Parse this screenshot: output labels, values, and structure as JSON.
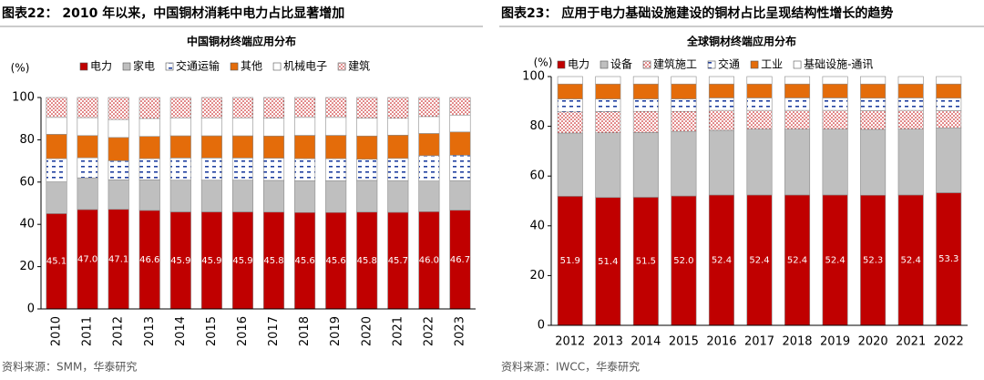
{
  "chart_data": [
    {
      "type": "bar",
      "stacked": true,
      "header": "图表22： 2010 年以来，中国铜材消耗中电力占比显著增加",
      "title": "中国铜材终端应用分布",
      "ylabel": "(%)",
      "source": "资料来源：SMM，华泰研究",
      "categories": [
        "2010",
        "2011",
        "2012",
        "2013",
        "2014",
        "2015",
        "2016",
        "2017",
        "2018",
        "2019",
        "2020",
        "2021",
        "2022",
        "2023"
      ],
      "ylim": [
        0,
        100
      ],
      "yticks": [
        0,
        20,
        40,
        60,
        80,
        100
      ],
      "xlabel_rotate": true,
      "series": [
        {
          "name": "电力",
          "color": "#c00000",
          "values": [
            45.1,
            47.0,
            47.1,
            46.6,
            45.9,
            45.9,
            45.9,
            45.8,
            45.6,
            45.6,
            45.8,
            45.7,
            46.0,
            46.7
          ],
          "value_labels": [
            "45.1",
            "47.0",
            "47.1",
            "46.6",
            "45.9",
            "45.9",
            "45.9",
            "45.8",
            "45.6",
            "45.6",
            "45.8",
            "45.7",
            "46.0",
            "46.7"
          ]
        },
        {
          "name": "家电",
          "color": "#bfbfbf",
          "values": [
            15.0,
            15.0,
            14.0,
            14.5,
            15.0,
            15.0,
            15.0,
            15.0,
            15.0,
            15.0,
            15.0,
            15.0,
            14.5,
            14.0
          ]
        },
        {
          "name": "交通运输",
          "color": "#1f3fa0",
          "pattern": "dashes",
          "values": [
            11.0,
            9.5,
            9.0,
            10.0,
            10.5,
            10.5,
            10.5,
            10.5,
            10.5,
            10.5,
            10.0,
            10.5,
            12.0,
            12.0
          ]
        },
        {
          "name": "其他",
          "color": "#e46c0a",
          "values": [
            11.5,
            10.5,
            11.0,
            10.5,
            10.5,
            10.5,
            10.5,
            10.5,
            11.0,
            11.0,
            11.0,
            11.0,
            10.5,
            11.0
          ]
        },
        {
          "name": "机械电子",
          "color": "#ffffff",
          "values": [
            8.0,
            8.5,
            8.5,
            8.5,
            8.5,
            8.5,
            8.5,
            8.5,
            8.5,
            8.5,
            8.5,
            8.0,
            8.0,
            8.0
          ]
        },
        {
          "name": "建筑",
          "color": "#c00000",
          "pattern": "dots",
          "values": [
            9.4,
            9.5,
            10.4,
            9.9,
            9.6,
            9.6,
            9.6,
            9.7,
            9.4,
            9.4,
            9.7,
            9.8,
            9.0,
            8.3
          ]
        }
      ]
    },
    {
      "type": "bar",
      "stacked": true,
      "header": "图表23： 应用于电力基础设施建设的铜材占比呈现结构性增长的趋势",
      "title": "全球铜材终端应用分布",
      "ylabel": "(%)",
      "source": "资料来源：IWCC，华泰研究",
      "categories": [
        "2012",
        "2013",
        "2014",
        "2015",
        "2016",
        "2017",
        "2018",
        "2019",
        "2020",
        "2021",
        "2022"
      ],
      "ylim": [
        0,
        100
      ],
      "yticks": [
        0,
        20,
        40,
        60,
        80,
        100
      ],
      "xlabel_rotate": false,
      "series": [
        {
          "name": "电力",
          "color": "#c00000",
          "values": [
            51.9,
            51.4,
            51.5,
            52.0,
            52.4,
            52.4,
            52.4,
            52.4,
            52.3,
            52.4,
            53.3
          ],
          "value_labels": [
            "51.9",
            "51.4",
            "51.5",
            "52.0",
            "52.4",
            "52.4",
            "52.4",
            "52.4",
            "52.3",
            "52.4",
            "53.3"
          ]
        },
        {
          "name": "设备",
          "color": "#bfbfbf",
          "values": [
            25.4,
            26.0,
            26.0,
            26.0,
            26.0,
            26.5,
            26.5,
            26.5,
            26.5,
            26.5,
            26.0
          ]
        },
        {
          "name": "建筑施工",
          "color": "#c00000",
          "pattern": "dots",
          "values": [
            8.5,
            8.5,
            8.5,
            8.0,
            8.0,
            7.5,
            7.5,
            7.5,
            7.5,
            7.5,
            7.0
          ]
        },
        {
          "name": "交通",
          "color": "#1f3fa0",
          "pattern": "dashes",
          "values": [
            5.2,
            5.1,
            5.0,
            5.0,
            5.0,
            5.0,
            5.0,
            5.0,
            5.0,
            5.0,
            5.0
          ]
        },
        {
          "name": "工业",
          "color": "#e46c0a",
          "values": [
            6.0,
            6.0,
            6.0,
            6.0,
            5.6,
            5.6,
            5.6,
            5.6,
            5.7,
            5.6,
            5.7
          ]
        },
        {
          "name": "基础设施-通讯",
          "color": "#ffffff",
          "values": [
            3.0,
            3.0,
            3.0,
            3.0,
            3.0,
            3.0,
            3.0,
            3.0,
            3.0,
            3.0,
            3.0
          ]
        }
      ]
    }
  ]
}
